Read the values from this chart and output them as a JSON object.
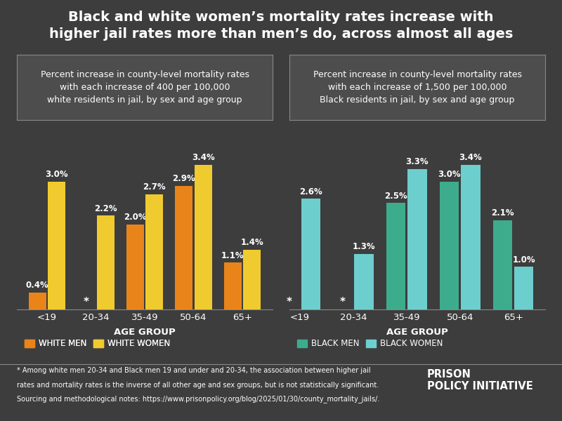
{
  "title": "Black and white women’s mortality rates increase with\nhigher jail rates more than men’s do, across almost all ages",
  "background_color": "#3d3d3d",
  "text_color": "#ffffff",
  "age_groups": [
    "<19",
    "20-34",
    "35-49",
    "50-64",
    "65+"
  ],
  "left_chart": {
    "subtitle": "Percent increase in county-level mortality rates\nwith each increase of 400 per 100,000\nwhite residents in jail, by sex and age group",
    "white_men": [
      0.4,
      null,
      2.0,
      2.9,
      1.1
    ],
    "white_women": [
      3.0,
      2.2,
      2.7,
      3.4,
      1.4
    ],
    "white_men_color": "#e8841a",
    "white_women_color": "#f0cb2f",
    "xlabel": "AGE GROUP"
  },
  "right_chart": {
    "subtitle": "Percent increase in county-level mortality rates\nwith each increase of 1,500 per 100,000\nBlack residents in jail, by sex and age group",
    "black_men": [
      null,
      null,
      2.5,
      3.0,
      2.1
    ],
    "black_women": [
      2.6,
      1.3,
      3.3,
      3.4,
      1.0
    ],
    "black_men_color": "#3dac8c",
    "black_women_color": "#6dcece",
    "xlabel": "AGE GROUP"
  },
  "star_note_line1": "* Among white men 20-34 and Black men 19 and under and 20-34, the association between higher jail",
  "star_note_line2": "rates and mortality rates is the inverse of all other age and sex groups, but is not statistically significant.",
  "source_note": "Sourcing and methodological notes: https://www.prisonpolicy.org/blog/2025/01/30/county_mortality_jails/.",
  "legend": {
    "white_men_label": "WHITE MEN",
    "white_women_label": "WHITE WOMEN",
    "black_men_label": "BLACK MEN",
    "black_women_label": "BLACK WOMEN"
  },
  "subtitle_box_color": "#4d4d4d",
  "subtitle_box_border": "#888888"
}
